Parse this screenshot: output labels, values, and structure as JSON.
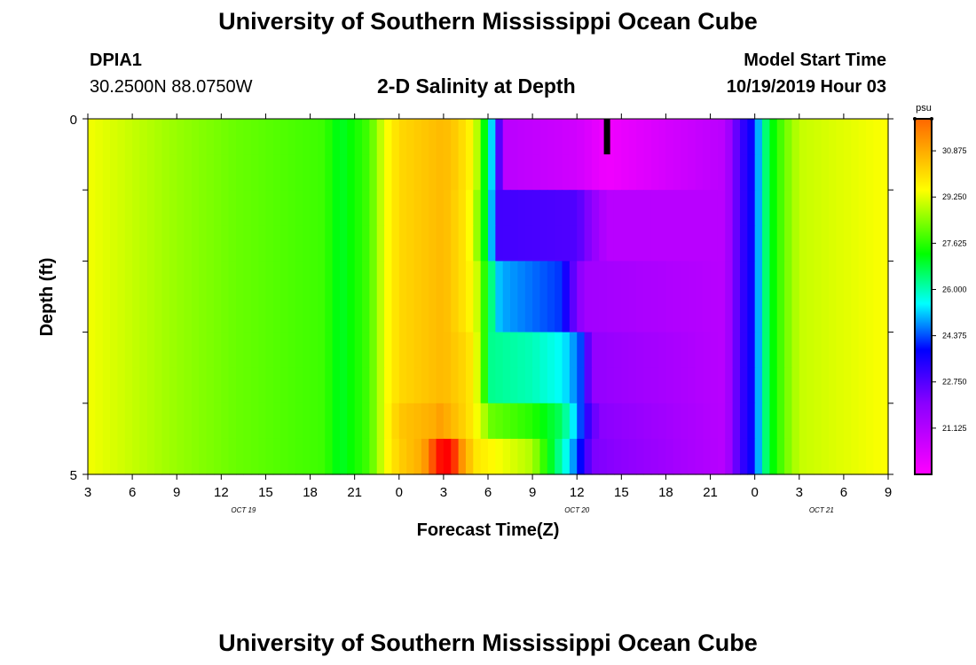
{
  "page": {
    "title_top": "University of Southern Mississippi Ocean Cube",
    "title_bottom": "University of Southern Mississippi Ocean Cube",
    "station_id": "DPIA1",
    "coordinates": "30.2500N 88.0750W",
    "plot_title": "2-D Salinity at Depth",
    "model_start_label": "Model Start Time",
    "model_start_value": "10/19/2019 Hour 03"
  },
  "chart_data": {
    "type": "heatmap",
    "title": "2-D Salinity at Depth",
    "xlabel": "Forecast Time(Z)",
    "ylabel": "Depth (ft)",
    "x_ticks": [
      "3",
      "6",
      "9",
      "12",
      "15",
      "18",
      "21",
      "0",
      "3",
      "6",
      "9",
      "12",
      "15",
      "18",
      "21",
      "0",
      "3",
      "6",
      "9"
    ],
    "x_range_hours": [
      0,
      54
    ],
    "date_labels": [
      {
        "text": "OCT 19",
        "hour": 10.5
      },
      {
        "text": "OCT 20",
        "hour": 33
      },
      {
        "text": "OCT 21",
        "hour": 49.5
      }
    ],
    "y_ticks": [
      "0",
      "5"
    ],
    "ylim": [
      0,
      5
    ],
    "colorbar": {
      "unit": "psu",
      "tick_labels": [
        "30.875",
        "29.250",
        "27.625",
        "26.000",
        "24.375",
        "22.750",
        "21.125"
      ],
      "range": [
        19.5,
        32.0
      ]
    },
    "depths_ft": [
      0.25,
      0.75,
      1.25,
      1.75,
      2.25,
      2.75,
      3.25,
      3.75,
      4.25,
      4.75
    ],
    "marker": {
      "hour": 35,
      "depth_from": 0,
      "depth_to": 0.5,
      "color": "#000000"
    },
    "salinity_rows": [
      [
        [
          0,
          29.4
        ],
        [
          6,
          28.6
        ],
        [
          10,
          28.2
        ],
        [
          16,
          27.8
        ],
        [
          17,
          27.0
        ],
        [
          19,
          27.9
        ],
        [
          20,
          29.3
        ],
        [
          21,
          30.3
        ],
        [
          24,
          31.0
        ],
        [
          25,
          30.5
        ],
        [
          26,
          29.5
        ],
        [
          26.6,
          28.0
        ],
        [
          27,
          26.0
        ],
        [
          27.5,
          24.5
        ],
        [
          28,
          21.0
        ],
        [
          33,
          20.5
        ],
        [
          35,
          19.8
        ],
        [
          43,
          21.0
        ],
        [
          44,
          23.0
        ],
        [
          45,
          24.0
        ],
        [
          45.5,
          26.0
        ],
        [
          46,
          27.0
        ],
        [
          47,
          28.2
        ],
        [
          48,
          29.0
        ],
        [
          54,
          29.5
        ]
      ],
      [
        [
          0,
          29.4
        ],
        [
          6,
          28.6
        ],
        [
          10,
          28.2
        ],
        [
          16,
          27.8
        ],
        [
          17,
          27.0
        ],
        [
          19,
          27.9
        ],
        [
          20,
          29.3
        ],
        [
          21,
          30.3
        ],
        [
          24,
          31.0
        ],
        [
          25,
          30.5
        ],
        [
          26,
          29.5
        ],
        [
          26.6,
          28.0
        ],
        [
          27,
          26.0
        ],
        [
          27.5,
          24.5
        ],
        [
          28,
          21.0
        ],
        [
          33,
          20.5
        ],
        [
          35,
          19.8
        ],
        [
          43,
          21.0
        ],
        [
          44,
          23.0
        ],
        [
          45,
          24.0
        ],
        [
          45.5,
          26.0
        ],
        [
          46,
          27.0
        ],
        [
          47,
          28.2
        ],
        [
          48,
          29.0
        ],
        [
          54,
          29.5
        ]
      ],
      [
        [
          0,
          29.4
        ],
        [
          6,
          28.6
        ],
        [
          10,
          28.2
        ],
        [
          16,
          27.8
        ],
        [
          17,
          27.0
        ],
        [
          19,
          27.9
        ],
        [
          20,
          29.3
        ],
        [
          21,
          30.3
        ],
        [
          24,
          31.0
        ],
        [
          25.5,
          30.0
        ],
        [
          26.3,
          28.5
        ],
        [
          27,
          26.5
        ],
        [
          27.6,
          23.0
        ],
        [
          33,
          22.8
        ],
        [
          35,
          21.0
        ],
        [
          43,
          21.0
        ],
        [
          44,
          23.0
        ],
        [
          45,
          24.0
        ],
        [
          45.5,
          26.0
        ],
        [
          46,
          27.0
        ],
        [
          47,
          28.2
        ],
        [
          48,
          29.0
        ],
        [
          54,
          29.5
        ]
      ],
      [
        [
          0,
          29.4
        ],
        [
          6,
          28.6
        ],
        [
          10,
          28.2
        ],
        [
          16,
          27.8
        ],
        [
          17,
          27.0
        ],
        [
          19,
          27.9
        ],
        [
          20,
          29.3
        ],
        [
          21,
          30.3
        ],
        [
          24,
          31.0
        ],
        [
          25.5,
          30.0
        ],
        [
          26.3,
          28.5
        ],
        [
          27,
          26.5
        ],
        [
          27.6,
          23.0
        ],
        [
          33,
          22.8
        ],
        [
          35,
          21.0
        ],
        [
          43,
          21.0
        ],
        [
          44,
          23.0
        ],
        [
          45,
          24.0
        ],
        [
          45.5,
          26.0
        ],
        [
          46,
          27.0
        ],
        [
          47,
          28.2
        ],
        [
          48,
          29.0
        ],
        [
          54,
          29.5
        ]
      ],
      [
        [
          0,
          29.4
        ],
        [
          6,
          28.6
        ],
        [
          10,
          28.2
        ],
        [
          16,
          27.8
        ],
        [
          17,
          27.0
        ],
        [
          19,
          27.9
        ],
        [
          20,
          29.3
        ],
        [
          21,
          30.3
        ],
        [
          24,
          31.0
        ],
        [
          25.5,
          30.0
        ],
        [
          26.2,
          29.2
        ],
        [
          27,
          27.0
        ],
        [
          27.8,
          25.0
        ],
        [
          32,
          24.2
        ],
        [
          32.5,
          23.0
        ],
        [
          33.5,
          21.5
        ],
        [
          43,
          21.0
        ],
        [
          44,
          23.0
        ],
        [
          45,
          24.0
        ],
        [
          45.5,
          26.0
        ],
        [
          46,
          27.0
        ],
        [
          47,
          28.2
        ],
        [
          48,
          29.0
        ],
        [
          54,
          29.5
        ]
      ],
      [
        [
          0,
          29.4
        ],
        [
          6,
          28.6
        ],
        [
          10,
          28.2
        ],
        [
          16,
          27.8
        ],
        [
          17,
          27.0
        ],
        [
          19,
          27.9
        ],
        [
          20,
          29.3
        ],
        [
          21,
          30.3
        ],
        [
          24,
          31.0
        ],
        [
          25.5,
          30.0
        ],
        [
          26.2,
          29.2
        ],
        [
          27,
          27.0
        ],
        [
          27.8,
          25.0
        ],
        [
          32,
          24.2
        ],
        [
          32.5,
          23.0
        ],
        [
          33.5,
          21.5
        ],
        [
          43,
          21.0
        ],
        [
          44,
          23.0
        ],
        [
          45,
          24.0
        ],
        [
          45.5,
          26.0
        ],
        [
          46,
          27.0
        ],
        [
          47,
          28.2
        ],
        [
          48,
          29.0
        ],
        [
          54,
          29.5
        ]
      ],
      [
        [
          0,
          29.4
        ],
        [
          6,
          28.6
        ],
        [
          10,
          28.2
        ],
        [
          16,
          27.8
        ],
        [
          17,
          27.0
        ],
        [
          19,
          27.9
        ],
        [
          20,
          29.3
        ],
        [
          21,
          30.3
        ],
        [
          24,
          31.0
        ],
        [
          25.5,
          30.3
        ],
        [
          26.1,
          29.7
        ],
        [
          27.2,
          26.3
        ],
        [
          30,
          26.0
        ],
        [
          32,
          25.5
        ],
        [
          33.2,
          24.5
        ],
        [
          34,
          21.8
        ],
        [
          43,
          21.0
        ],
        [
          44,
          23.0
        ],
        [
          45,
          24.0
        ],
        [
          45.5,
          26.0
        ],
        [
          46,
          27.0
        ],
        [
          47,
          28.2
        ],
        [
          48,
          29.0
        ],
        [
          54,
          29.5
        ]
      ],
      [
        [
          0,
          29.4
        ],
        [
          6,
          28.6
        ],
        [
          10,
          28.2
        ],
        [
          16,
          27.8
        ],
        [
          17,
          27.0
        ],
        [
          19,
          27.9
        ],
        [
          20,
          29.3
        ],
        [
          21,
          30.3
        ],
        [
          24,
          31.0
        ],
        [
          25.5,
          30.3
        ],
        [
          26.1,
          29.7
        ],
        [
          27.2,
          26.3
        ],
        [
          30,
          26.0
        ],
        [
          32,
          25.5
        ],
        [
          33.2,
          24.5
        ],
        [
          34,
          21.8
        ],
        [
          43,
          21.0
        ],
        [
          44,
          23.0
        ],
        [
          45,
          24.0
        ],
        [
          45.5,
          26.0
        ],
        [
          46,
          27.0
        ],
        [
          47,
          28.2
        ],
        [
          48,
          29.0
        ],
        [
          54,
          29.5
        ]
      ],
      [
        [
          0,
          29.4
        ],
        [
          6,
          28.6
        ],
        [
          10,
          28.2
        ],
        [
          16,
          27.8
        ],
        [
          17,
          27.0
        ],
        [
          19,
          27.9
        ],
        [
          20,
          29.3
        ],
        [
          21,
          30.7
        ],
        [
          24,
          31.4
        ],
        [
          25.6,
          30.3
        ],
        [
          26.2,
          29.5
        ],
        [
          27.2,
          28.2
        ],
        [
          30,
          27.6
        ],
        [
          32,
          26.6
        ],
        [
          33,
          25.0
        ],
        [
          33.6,
          23.4
        ],
        [
          34.5,
          22.0
        ],
        [
          43,
          21.0
        ],
        [
          44,
          23.0
        ],
        [
          45,
          24.0
        ],
        [
          45.5,
          26.0
        ],
        [
          46,
          27.0
        ],
        [
          47,
          28.2
        ],
        [
          48,
          29.0
        ],
        [
          54,
          29.5
        ]
      ],
      [
        [
          0,
          29.4
        ],
        [
          6,
          28.6
        ],
        [
          10,
          28.2
        ],
        [
          16,
          27.8
        ],
        [
          17,
          27.0
        ],
        [
          19,
          27.9
        ],
        [
          20,
          29.3
        ],
        [
          21,
          30.5
        ],
        [
          23,
          31.5
        ],
        [
          24.2,
          32.2
        ],
        [
          25.5,
          31.2
        ],
        [
          26.2,
          30.0
        ],
        [
          27.5,
          29.5
        ],
        [
          30,
          28.8
        ],
        [
          31,
          27.4
        ],
        [
          32,
          26.0
        ],
        [
          33,
          24.5
        ],
        [
          34,
          22.2
        ],
        [
          43,
          21.0
        ],
        [
          44,
          23.0
        ],
        [
          45,
          24.0
        ],
        [
          45.5,
          26.0
        ],
        [
          46,
          27.0
        ],
        [
          47,
          28.2
        ],
        [
          48,
          29.0
        ],
        [
          54,
          29.5
        ]
      ]
    ]
  }
}
